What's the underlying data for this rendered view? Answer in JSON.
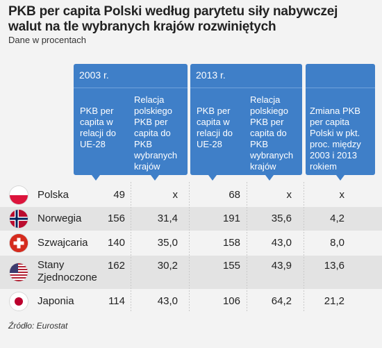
{
  "title": "PKB per capita Polski według parytetu siły nabywczej walut na tle wybranych krajów rozwiniętych",
  "subtitle": "Dane w procentach",
  "headers": {
    "y2003": {
      "year": "2003 r.",
      "col1": "PKB per capita w relacji do UE-28",
      "col2": "Relacja polskiego PKB per capita do PKB wybranych krajów"
    },
    "y2013": {
      "year": "2013 r.",
      "col1": "PKB per capita w relacji do UE-28",
      "col2": "Relacja polskiego PKB per capita do PKB wybranych krajów"
    },
    "change": "Zmiana PKB per capita Polski w pkt. proc. między 2003 i 2013 rokiem"
  },
  "rows": [
    {
      "country": "Polska",
      "flag": "flag-poland-icon",
      "v1": "49",
      "v2": "x",
      "v3": "68",
      "v4": "x",
      "v5": "x"
    },
    {
      "country": "Norwegia",
      "flag": "flag-norway-icon",
      "v1": "156",
      "v2": "31,4",
      "v3": "191",
      "v4": "35,6",
      "v5": "4,2"
    },
    {
      "country": "Szwajcaria",
      "flag": "flag-switzerland-icon",
      "v1": "140",
      "v2": "35,0",
      "v3": "158",
      "v4": "43,0",
      "v5": "8,0"
    },
    {
      "country": "Stany Zjednoczone",
      "flag": "flag-usa-icon",
      "v1": "162",
      "v2": "30,2",
      "v3": "155",
      "v4": "43,9",
      "v5": "13,6"
    },
    {
      "country": "Japonia",
      "flag": "flag-japan-icon",
      "v1": "114",
      "v2": "43,0",
      "v3": "106",
      "v4": "64,2",
      "v5": "21,2"
    }
  ],
  "source": "Źródło: Eurostat",
  "colors": {
    "header_blue": "#3f7fc8",
    "stripe": "#e3e3e3",
    "background": "#f3f3f3"
  }
}
